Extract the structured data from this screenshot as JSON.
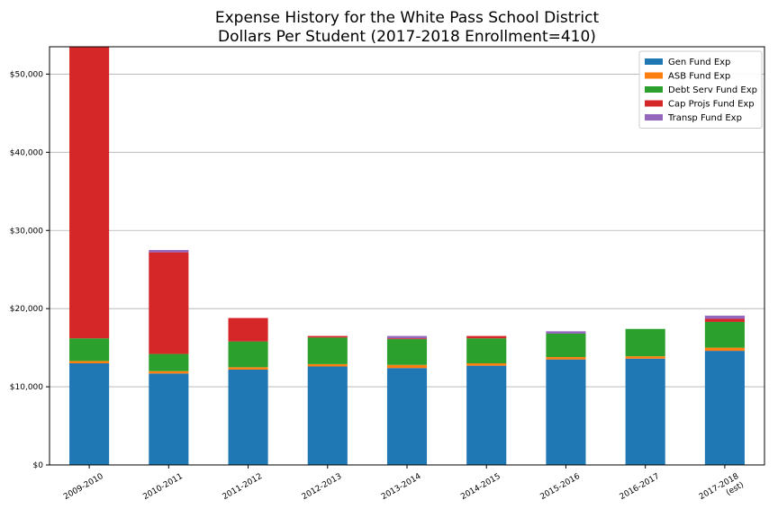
{
  "chart_data": {
    "type": "bar",
    "stacked": true,
    "title": "Expense History for the White Pass School District",
    "subtitle": "Dollars Per Student (2017-2018 Enrollment=410)",
    "xlabel": "",
    "ylabel": "",
    "categories": [
      "2009-2010",
      "2010-2011",
      "2011-2012",
      "2012-2013",
      "2013-2014",
      "2014-2015",
      "2015-2016",
      "2016-2017",
      "2017-2018\n(est)"
    ],
    "y_tick_labels": [
      "$0",
      "$10,000",
      "$20,000",
      "$30,000",
      "$40,000",
      "$50,000"
    ],
    "ylim": [
      0,
      53500
    ],
    "grid": "horizontal",
    "legend_position": "top-right",
    "series": [
      {
        "name": "Gen Fund Exp",
        "color": "#1f77b4",
        "values": [
          13000,
          11700,
          12200,
          12600,
          12400,
          12700,
          13500,
          13600,
          14600
        ]
      },
      {
        "name": "ASB Fund Exp",
        "color": "#ff7f0e",
        "values": [
          300,
          300,
          300,
          300,
          400,
          300,
          300,
          300,
          400
        ]
      },
      {
        "name": "Debt Serv Fund Exp",
        "color": "#2ca02c",
        "values": [
          2900,
          2200,
          3300,
          3400,
          3300,
          3200,
          3000,
          3500,
          3300
        ]
      },
      {
        "name": "Cap Projs Fund Exp",
        "color": "#d62728",
        "values": [
          37300,
          13000,
          3000,
          200,
          100,
          300,
          0,
          0,
          400
        ]
      },
      {
        "name": "Transp Fund Exp",
        "color": "#9467bd",
        "values": [
          0,
          300,
          0,
          0,
          300,
          0,
          300,
          0,
          400
        ]
      }
    ]
  }
}
